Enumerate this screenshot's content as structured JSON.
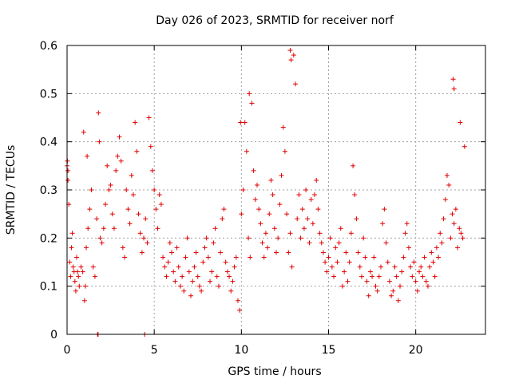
{
  "chart_data": {
    "type": "scatter",
    "title": "Day 026 of 2023, SRMTID for receiver norf",
    "xlabel": "GPS time / hours",
    "ylabel": "SRMTID / TECUs",
    "xlim": [
      0,
      24
    ],
    "ylim": [
      0,
      0.6
    ],
    "xticks": [
      0,
      5,
      10,
      15,
      20
    ],
    "xtick_labels": [
      "0",
      "5",
      "10",
      "15",
      "20"
    ],
    "yticks": [
      0,
      0.1,
      0.2,
      0.3,
      0.4,
      0.5,
      0.6
    ],
    "ytick_labels": [
      "0",
      "0.1",
      "0.2",
      "0.3",
      "0.4",
      "0.5",
      "0.6"
    ],
    "grid": true,
    "marker": "+",
    "series": [
      {
        "name": "SRMTID",
        "color": "#e00000",
        "x": [
          0.0,
          0.05,
          0.1,
          0.15,
          0.2,
          0.25,
          0.3,
          0.35,
          0.4,
          0.45,
          0.5,
          0.55,
          0.6,
          0.65,
          0.7,
          0.8,
          0.9,
          1.0,
          1.05,
          1.1,
          1.2,
          1.3,
          1.4,
          1.5,
          1.6,
          1.7,
          1.8,
          1.85,
          1.9,
          2.0,
          2.1,
          2.2,
          2.3,
          2.4,
          2.5,
          2.6,
          2.7,
          2.8,
          2.9,
          3.0,
          3.1,
          3.2,
          3.3,
          3.4,
          3.5,
          3.6,
          3.7,
          3.8,
          3.9,
          4.0,
          4.1,
          4.2,
          4.3,
          4.4,
          4.5,
          4.6,
          4.7,
          4.8,
          4.9,
          5.0,
          5.1,
          5.2,
          5.3,
          5.4,
          5.5,
          5.6,
          5.7,
          5.8,
          5.9,
          6.0,
          6.1,
          6.2,
          6.3,
          6.4,
          6.5,
          6.6,
          6.7,
          6.8,
          6.9,
          7.0,
          7.1,
          7.2,
          7.3,
          7.4,
          7.5,
          7.6,
          7.7,
          7.8,
          7.9,
          8.0,
          8.1,
          8.2,
          8.3,
          8.4,
          8.5,
          8.6,
          8.7,
          8.8,
          8.9,
          9.0,
          9.1,
          9.2,
          9.3,
          9.4,
          9.5,
          9.6,
          9.7,
          9.8,
          9.9,
          10.0,
          10.1,
          10.2,
          10.3,
          10.4,
          10.5,
          10.6,
          10.7,
          10.8,
          10.9,
          11.0,
          11.1,
          11.2,
          11.3,
          11.4,
          11.5,
          11.6,
          11.7,
          11.8,
          11.9,
          12.0,
          12.1,
          12.2,
          12.3,
          12.4,
          12.5,
          12.6,
          12.7,
          12.8,
          12.9,
          13.0,
          13.1,
          13.2,
          13.3,
          13.4,
          13.5,
          13.6,
          13.7,
          13.8,
          13.9,
          14.0,
          14.1,
          14.2,
          14.3,
          14.4,
          14.5,
          14.6,
          14.7,
          14.8,
          14.9,
          15.0,
          15.1,
          15.2,
          15.3,
          15.4,
          15.5,
          15.6,
          15.7,
          15.8,
          15.9,
          16.0,
          16.1,
          16.2,
          16.3,
          16.4,
          16.5,
          16.6,
          16.7,
          16.8,
          16.9,
          17.0,
          17.1,
          17.2,
          17.3,
          17.4,
          17.5,
          17.6,
          17.7,
          17.8,
          17.9,
          18.0,
          18.1,
          18.2,
          18.3,
          18.4,
          18.5,
          18.6,
          18.7,
          18.8,
          18.9,
          19.0,
          19.1,
          19.2,
          19.3,
          19.4,
          19.5,
          19.6,
          19.7,
          19.8,
          19.9,
          20.0,
          20.1,
          20.2,
          20.3,
          20.4,
          20.5,
          20.6,
          20.7,
          20.8,
          20.9,
          21.0,
          21.1,
          21.2,
          21.3,
          21.4,
          21.5,
          21.6,
          21.7,
          21.8,
          21.9,
          22.0,
          22.1,
          22.2,
          22.3,
          22.4,
          22.5,
          22.6,
          22.7,
          22.8,
          0.95,
          1.15,
          4.45,
          1.75,
          1.78,
          12.8,
          12.85,
          22.15,
          22.2,
          22.55,
          10.45,
          9.95,
          0.02,
          0.05
        ],
        "y": [
          0.35,
          0.32,
          0.27,
          0.15,
          0.12,
          0.18,
          0.21,
          0.14,
          0.13,
          0.11,
          0.09,
          0.16,
          0.13,
          0.12,
          0.1,
          0.14,
          0.13,
          0.07,
          0.1,
          0.18,
          0.22,
          0.26,
          0.3,
          0.14,
          0.12,
          0.24,
          0.46,
          0.4,
          0.2,
          0.19,
          0.22,
          0.27,
          0.35,
          0.3,
          0.31,
          0.25,
          0.22,
          0.34,
          0.37,
          0.41,
          0.36,
          0.18,
          0.16,
          0.3,
          0.26,
          0.23,
          0.33,
          0.29,
          0.44,
          0.38,
          0.25,
          0.21,
          0.17,
          0.2,
          0.24,
          0.19,
          0.45,
          0.39,
          0.34,
          0.3,
          0.26,
          0.22,
          0.29,
          0.27,
          0.16,
          0.14,
          0.12,
          0.15,
          0.19,
          0.17,
          0.13,
          0.11,
          0.18,
          0.14,
          0.1,
          0.12,
          0.09,
          0.16,
          0.2,
          0.13,
          0.08,
          0.11,
          0.14,
          0.17,
          0.12,
          0.1,
          0.09,
          0.15,
          0.18,
          0.2,
          0.16,
          0.11,
          0.13,
          0.19,
          0.22,
          0.12,
          0.1,
          0.17,
          0.24,
          0.26,
          0.15,
          0.13,
          0.12,
          0.09,
          0.11,
          0.14,
          0.16,
          0.07,
          0.05,
          0.25,
          0.3,
          0.44,
          0.38,
          0.2,
          0.16,
          0.48,
          0.34,
          0.28,
          0.31,
          0.26,
          0.23,
          0.19,
          0.16,
          0.21,
          0.18,
          0.25,
          0.32,
          0.29,
          0.22,
          0.17,
          0.2,
          0.27,
          0.33,
          0.43,
          0.38,
          0.25,
          0.17,
          0.21,
          0.14,
          0.58,
          0.52,
          0.24,
          0.29,
          0.2,
          0.26,
          0.22,
          0.3,
          0.24,
          0.19,
          0.28,
          0.23,
          0.29,
          0.32,
          0.26,
          0.21,
          0.19,
          0.17,
          0.15,
          0.13,
          0.16,
          0.2,
          0.14,
          0.12,
          0.18,
          0.15,
          0.19,
          0.22,
          0.1,
          0.13,
          0.17,
          0.11,
          0.15,
          0.21,
          0.35,
          0.29,
          0.24,
          0.17,
          0.14,
          0.12,
          0.2,
          0.16,
          0.11,
          0.08,
          0.13,
          0.12,
          0.16,
          0.1,
          0.09,
          0.12,
          0.14,
          0.23,
          0.26,
          0.19,
          0.15,
          0.11,
          0.08,
          0.09,
          0.14,
          0.12,
          0.07,
          0.1,
          0.13,
          0.16,
          0.21,
          0.23,
          0.18,
          0.14,
          0.12,
          0.15,
          0.11,
          0.09,
          0.13,
          0.14,
          0.12,
          0.16,
          0.11,
          0.1,
          0.14,
          0.17,
          0.15,
          0.12,
          0.18,
          0.16,
          0.21,
          0.19,
          0.24,
          0.28,
          0.33,
          0.31,
          0.2,
          0.25,
          0.23,
          0.26,
          0.18,
          0.22,
          0.21,
          0.2,
          0.39,
          0.42,
          0.37,
          0.0,
          0.0,
          0.0,
          0.59,
          0.57,
          0.53,
          0.51,
          0.44,
          0.5,
          0.44,
          0.36,
          0.34
        ]
      }
    ]
  }
}
